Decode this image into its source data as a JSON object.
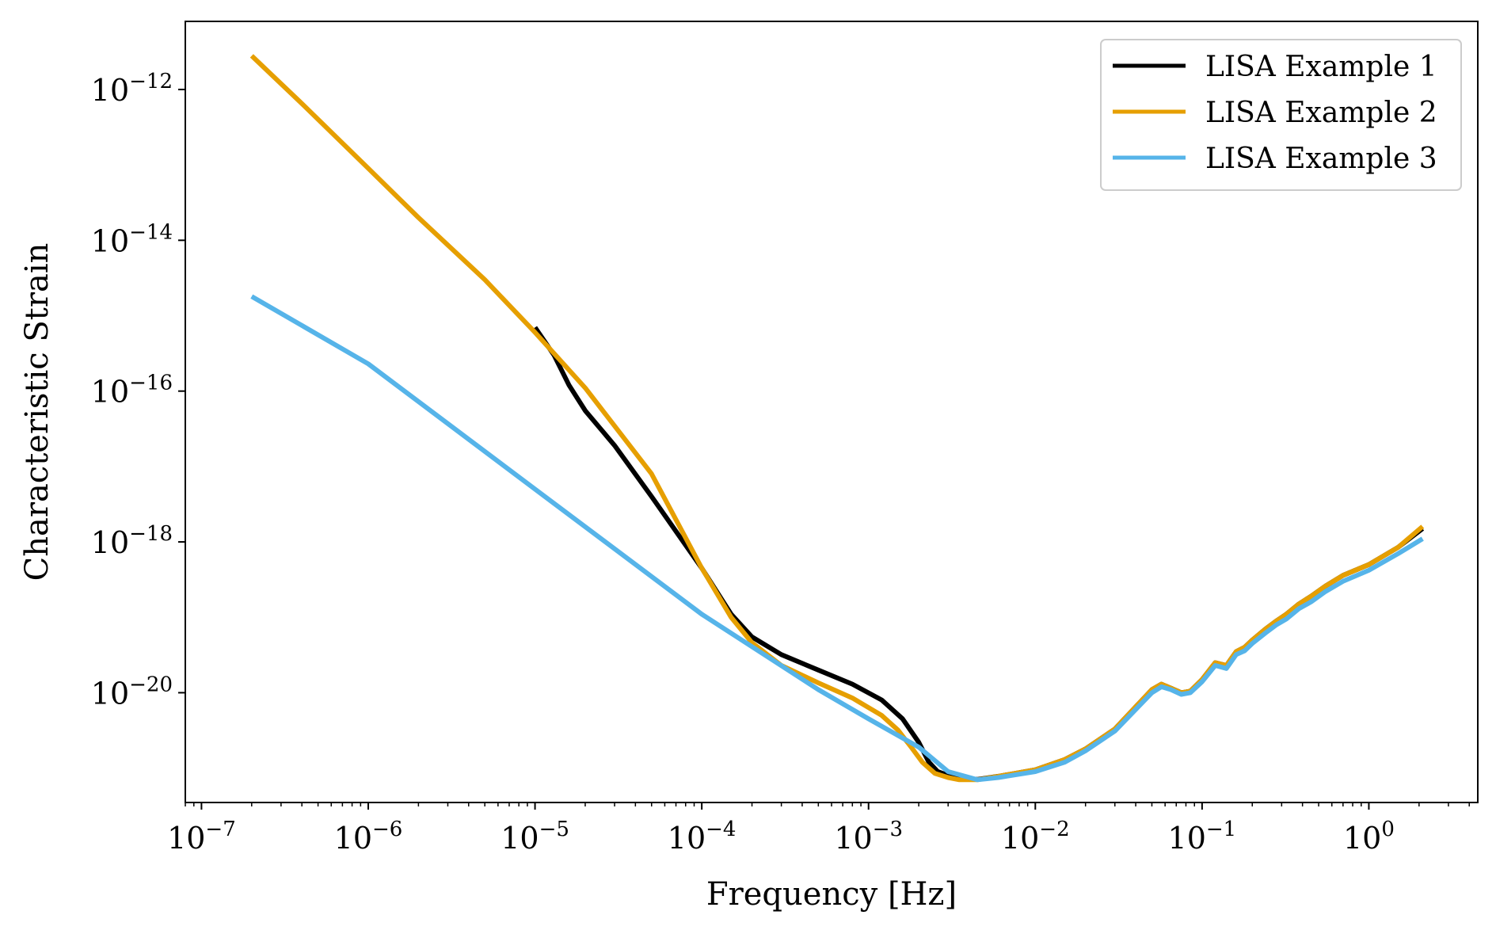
{
  "chart_data": {
    "type": "line",
    "xlabel": "Frequency [Hz]",
    "ylabel": "Characteristic Strain",
    "xscale": "log",
    "yscale": "log",
    "xlim": [
      8e-08,
      4.5
    ],
    "ylim": [
      3.5e-22,
      8e-12
    ],
    "xticks": [
      {
        "base": "10",
        "exp": "−7",
        "value": 1e-07
      },
      {
        "base": "10",
        "exp": "−6",
        "value": 1e-06
      },
      {
        "base": "10",
        "exp": "−5",
        "value": 1e-05
      },
      {
        "base": "10",
        "exp": "−4",
        "value": 0.0001
      },
      {
        "base": "10",
        "exp": "−3",
        "value": 0.001
      },
      {
        "base": "10",
        "exp": "−2",
        "value": 0.01
      },
      {
        "base": "10",
        "exp": "−1",
        "value": 0.1
      },
      {
        "base": "10",
        "exp": "0",
        "value": 1
      }
    ],
    "yticks": [
      {
        "base": "10",
        "exp": "−20",
        "value": 1e-20
      },
      {
        "base": "10",
        "exp": "−18",
        "value": 1e-18
      },
      {
        "base": "10",
        "exp": "−16",
        "value": 1e-16
      },
      {
        "base": "10",
        "exp": "−14",
        "value": 1e-14
      },
      {
        "base": "10",
        "exp": "−12",
        "value": 1e-12
      }
    ],
    "grid": false,
    "legend_position": "top-right",
    "series": [
      {
        "name": "LISA Example 1",
        "color": "#000000",
        "x": [
          1e-05,
          1.3e-05,
          1.6e-05,
          2e-05,
          3e-05,
          5e-05,
          0.0001,
          0.00015,
          0.0002,
          0.0003,
          0.0005,
          0.0008,
          0.0012,
          0.0016,
          0.002,
          0.0023,
          0.0026,
          0.003,
          0.0035,
          0.0045,
          0.006,
          0.01,
          0.015,
          0.02,
          0.03,
          0.04,
          0.05,
          0.057,
          0.065,
          0.075,
          0.085,
          0.1,
          0.12,
          0.14,
          0.16,
          0.18,
          0.2,
          0.24,
          0.28,
          0.32,
          0.38,
          0.45,
          0.55,
          0.7,
          1,
          1.5,
          2.1
        ],
        "y": [
          7e-16,
          3e-16,
          1.2e-16,
          5.5e-17,
          1.9e-17,
          4e-18,
          4.5e-19,
          1.1e-19,
          5.5e-20,
          3.2e-20,
          2e-20,
          1.3e-20,
          8e-21,
          4.5e-21,
          2.2e-21,
          1.2e-21,
          9e-22,
          8e-22,
          7.3e-22,
          7.1e-22,
          7.8e-22,
          9.5e-22,
          1.3e-21,
          1.8e-21,
          3.3e-21,
          6.5e-21,
          1.1e-20,
          1.3e-20,
          1.15e-20,
          1e-20,
          1.05e-20,
          1.5e-20,
          2.5e-20,
          2.3e-20,
          3.5e-20,
          4e-20,
          5e-20,
          7e-20,
          9e-20,
          1.1e-19,
          1.5e-19,
          1.9e-19,
          2.6e-19,
          3.6e-19,
          5e-19,
          8.5e-19,
          1.5e-18
        ]
      },
      {
        "name": "LISA Example 2",
        "color": "#E69F00",
        "x": [
          2e-07,
          4e-07,
          1e-06,
          2e-06,
          5e-06,
          1e-05,
          2e-05,
          5e-05,
          0.0001,
          0.00015,
          0.0002,
          0.0003,
          0.0005,
          0.0008,
          0.0012,
          0.0015,
          0.0018,
          0.0021,
          0.0025,
          0.003,
          0.0035,
          0.0045,
          0.006,
          0.01,
          0.015,
          0.02,
          0.03,
          0.04,
          0.05,
          0.057,
          0.065,
          0.075,
          0.085,
          0.1,
          0.12,
          0.14,
          0.16,
          0.18,
          0.2,
          0.24,
          0.28,
          0.32,
          0.38,
          0.45,
          0.55,
          0.7,
          1,
          1.5,
          2.1
        ],
        "y": [
          2.8e-12,
          6.5e-13,
          9e-14,
          2e-14,
          3e-15,
          6e-16,
          1.1e-16,
          8e-18,
          4.5e-19,
          1e-19,
          4.6e-20,
          2.3e-20,
          1.35e-20,
          8.5e-21,
          5e-21,
          3.2e-21,
          1.9e-21,
          1.2e-21,
          8.5e-22,
          7.5e-22,
          7e-22,
          7e-22,
          7.8e-22,
          9.5e-22,
          1.3e-21,
          1.8e-21,
          3.3e-21,
          6.5e-21,
          1.1e-20,
          1.3e-20,
          1.15e-20,
          1e-20,
          1.05e-20,
          1.5e-20,
          2.5e-20,
          2.3e-20,
          3.5e-20,
          4e-20,
          5e-20,
          7e-20,
          9e-20,
          1.1e-19,
          1.5e-19,
          1.9e-19,
          2.6e-19,
          3.6e-19,
          5e-19,
          8.5e-19,
          1.6e-18
        ]
      },
      {
        "name": "LISA Example 3",
        "color": "#56B4E9",
        "x": [
          2e-07,
          1e-06,
          1e-05,
          0.0001,
          0.0005,
          0.001,
          0.002,
          0.003,
          0.0045,
          0.006,
          0.01,
          0.015,
          0.02,
          0.03,
          0.04,
          0.05,
          0.057,
          0.065,
          0.075,
          0.085,
          0.1,
          0.12,
          0.14,
          0.16,
          0.18,
          0.2,
          0.24,
          0.28,
          0.32,
          0.38,
          0.45,
          0.55,
          0.7,
          1,
          1.5,
          2.1
        ],
        "y": [
          1.8e-15,
          2.3e-16,
          5e-18,
          1.1e-19,
          1.1e-20,
          4.5e-21,
          1.9e-21,
          9e-22,
          7e-22,
          7.5e-22,
          9e-22,
          1.2e-21,
          1.7e-21,
          3.1e-21,
          6e-21,
          1e-20,
          1.2e-20,
          1.1e-20,
          9.5e-21,
          1e-20,
          1.4e-20,
          2.3e-20,
          2.1e-20,
          3.2e-20,
          3.6e-20,
          4.5e-20,
          6.2e-20,
          8e-20,
          9.5e-20,
          1.3e-19,
          1.6e-19,
          2.2e-19,
          3e-19,
          4.2e-19,
          7e-19,
          1.1e-18
        ]
      }
    ]
  }
}
